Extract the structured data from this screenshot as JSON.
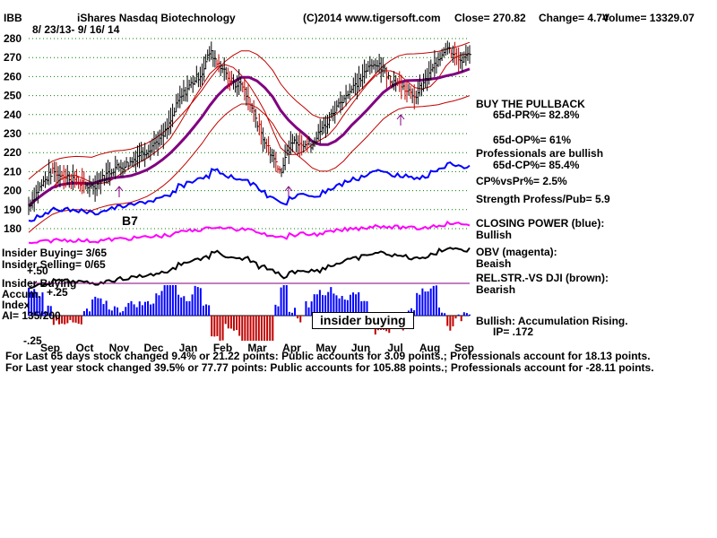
{
  "header": {
    "ticker": "IBB",
    "name": "iShares Nasdaq Biotechnology",
    "copyright": "(C)2014 www.tigersoft.com",
    "close": "Close=  270.82",
    "change": "Change= 4.74",
    "volume": "Volume= 13329.07",
    "date_range": "8/ 23/13- 9/ 16/ 14"
  },
  "right_labels": {
    "buy": "BUY THE PULLBACK",
    "pr": "65d-PR%= 82.8%",
    "op": "65d-OP%= 61%",
    "pros": "Professionals are bullish",
    "cp": "65d-CP%= 85.4%",
    "cpvs": "CP%vsPr%=  2.5%",
    "strength": "Strength Profess/Pub= 5.9",
    "closing": "CLOSING POWER (blue):",
    "closing_state": "Bullish",
    "obv": "OBV (magenta):",
    "obv_state": "Beaish",
    "rel": "REL.STR.-VS DJI (brown):",
    "rel_state": "Bearish",
    "accum": "Bullish: Accumulation Rising.",
    "ip": "IP=  .172"
  },
  "left_labels": {
    "insider_buying": "Insider Buying= 3/65",
    "insider_selling": "Insider Selling= 0/65",
    "plus50": "+.50",
    "insider_buying2": "Insider Buying",
    "accum": "Accum.",
    "plus25": "+.25",
    "index": "Index",
    "ai": "AI= 135/200",
    "minus25": "-.25",
    "signal_b7": "B7",
    "insider_box": "insider buying"
  },
  "footer": {
    "line1": "For Last 65 days stock changed  9.4% or  21.22 points:  Public accounts for  3.09 points.;  Professionals account for  18.13 points.",
    "line2": "For Last year stock changed  39.5% or  77.77 points:  Public accounts for  105.88 points.;  Professionals account for -28.11 points."
  },
  "colors": {
    "price": "#000000",
    "bands": "#c00000",
    "ma": "#800080",
    "closing_power": "#0000ff",
    "obv": "#ff00ff",
    "grid": "#008000",
    "accum_pos": "#0000ff",
    "accum_neg": "#c00000"
  },
  "chart_data": {
    "type": "line",
    "title": "iShares Nasdaq Biotechnology",
    "ylim": [
      175,
      285
    ],
    "y_ticks": [
      180,
      190,
      200,
      210,
      220,
      230,
      240,
      250,
      260,
      270,
      280
    ],
    "months": [
      "Sep",
      "Oct",
      "Nov",
      "Dec",
      "Jan",
      "Feb",
      "Mar",
      "Apr",
      "May",
      "Jun",
      "Jul",
      "Aug",
      "Sep"
    ],
    "series": [
      {
        "values": [
          192,
          199,
          205,
          210,
          209,
          207,
          206,
          203,
          201,
          205,
          209,
          212,
          213,
          215,
          219,
          221,
          225,
          228,
          236,
          247,
          253,
          258,
          262,
          273,
          268,
          262,
          256,
          257,
          247,
          236,
          226,
          218,
          210,
          222,
          226,
          225,
          224,
          231,
          236,
          243,
          249,
          253,
          258,
          264,
          266,
          264,
          258,
          257,
          252,
          250,
          255,
          262,
          269,
          276,
          272,
          269,
          271
        ]
      }
    ]
  }
}
